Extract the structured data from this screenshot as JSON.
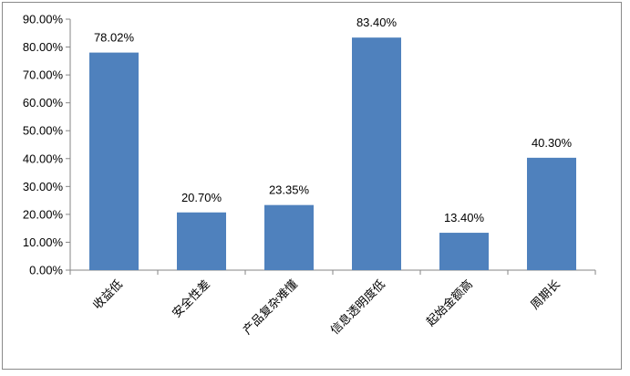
{
  "chart_data": {
    "type": "bar",
    "title": "",
    "xlabel": "",
    "ylabel": "",
    "categories": [
      "收益低",
      "安全性差",
      "产品复杂难懂",
      "信息透明度低",
      "起始金额高",
      "周期长"
    ],
    "values": [
      78.02,
      20.7,
      23.35,
      83.4,
      13.4,
      40.3
    ],
    "data_labels": [
      "78.02%",
      "20.70%",
      "23.35%",
      "83.40%",
      "13.40%",
      "40.30%"
    ],
    "yticks": [
      "0.00%",
      "10.00%",
      "20.00%",
      "30.00%",
      "40.00%",
      "50.00%",
      "60.00%",
      "70.00%",
      "80.00%",
      "90.00%"
    ],
    "ylim": [
      0,
      90
    ],
    "grid": false,
    "legend": "none",
    "bar_color": "#4F81BD",
    "axis_color": "#868686"
  }
}
